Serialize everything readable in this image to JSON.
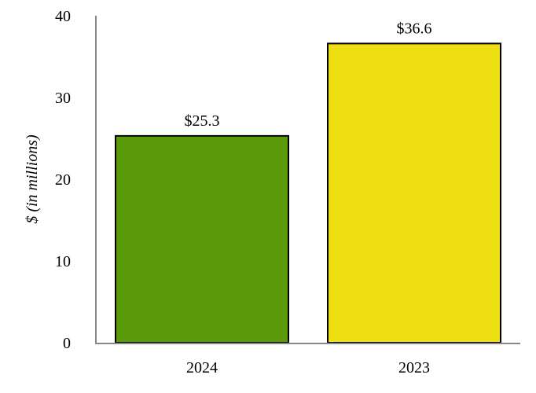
{
  "chart_data": {
    "type": "bar",
    "title": "",
    "xlabel": "",
    "ylabel": "$ (in millions)",
    "ylim": [
      0,
      40
    ],
    "yticks": [
      0,
      10,
      20,
      30,
      40
    ],
    "grid": false,
    "categories": [
      "2024",
      "2023"
    ],
    "values": [
      25.3,
      36.6
    ],
    "data_labels": [
      "$25.3",
      "$36.6"
    ],
    "colors": [
      "#5a9a08",
      "#eedf12"
    ]
  }
}
